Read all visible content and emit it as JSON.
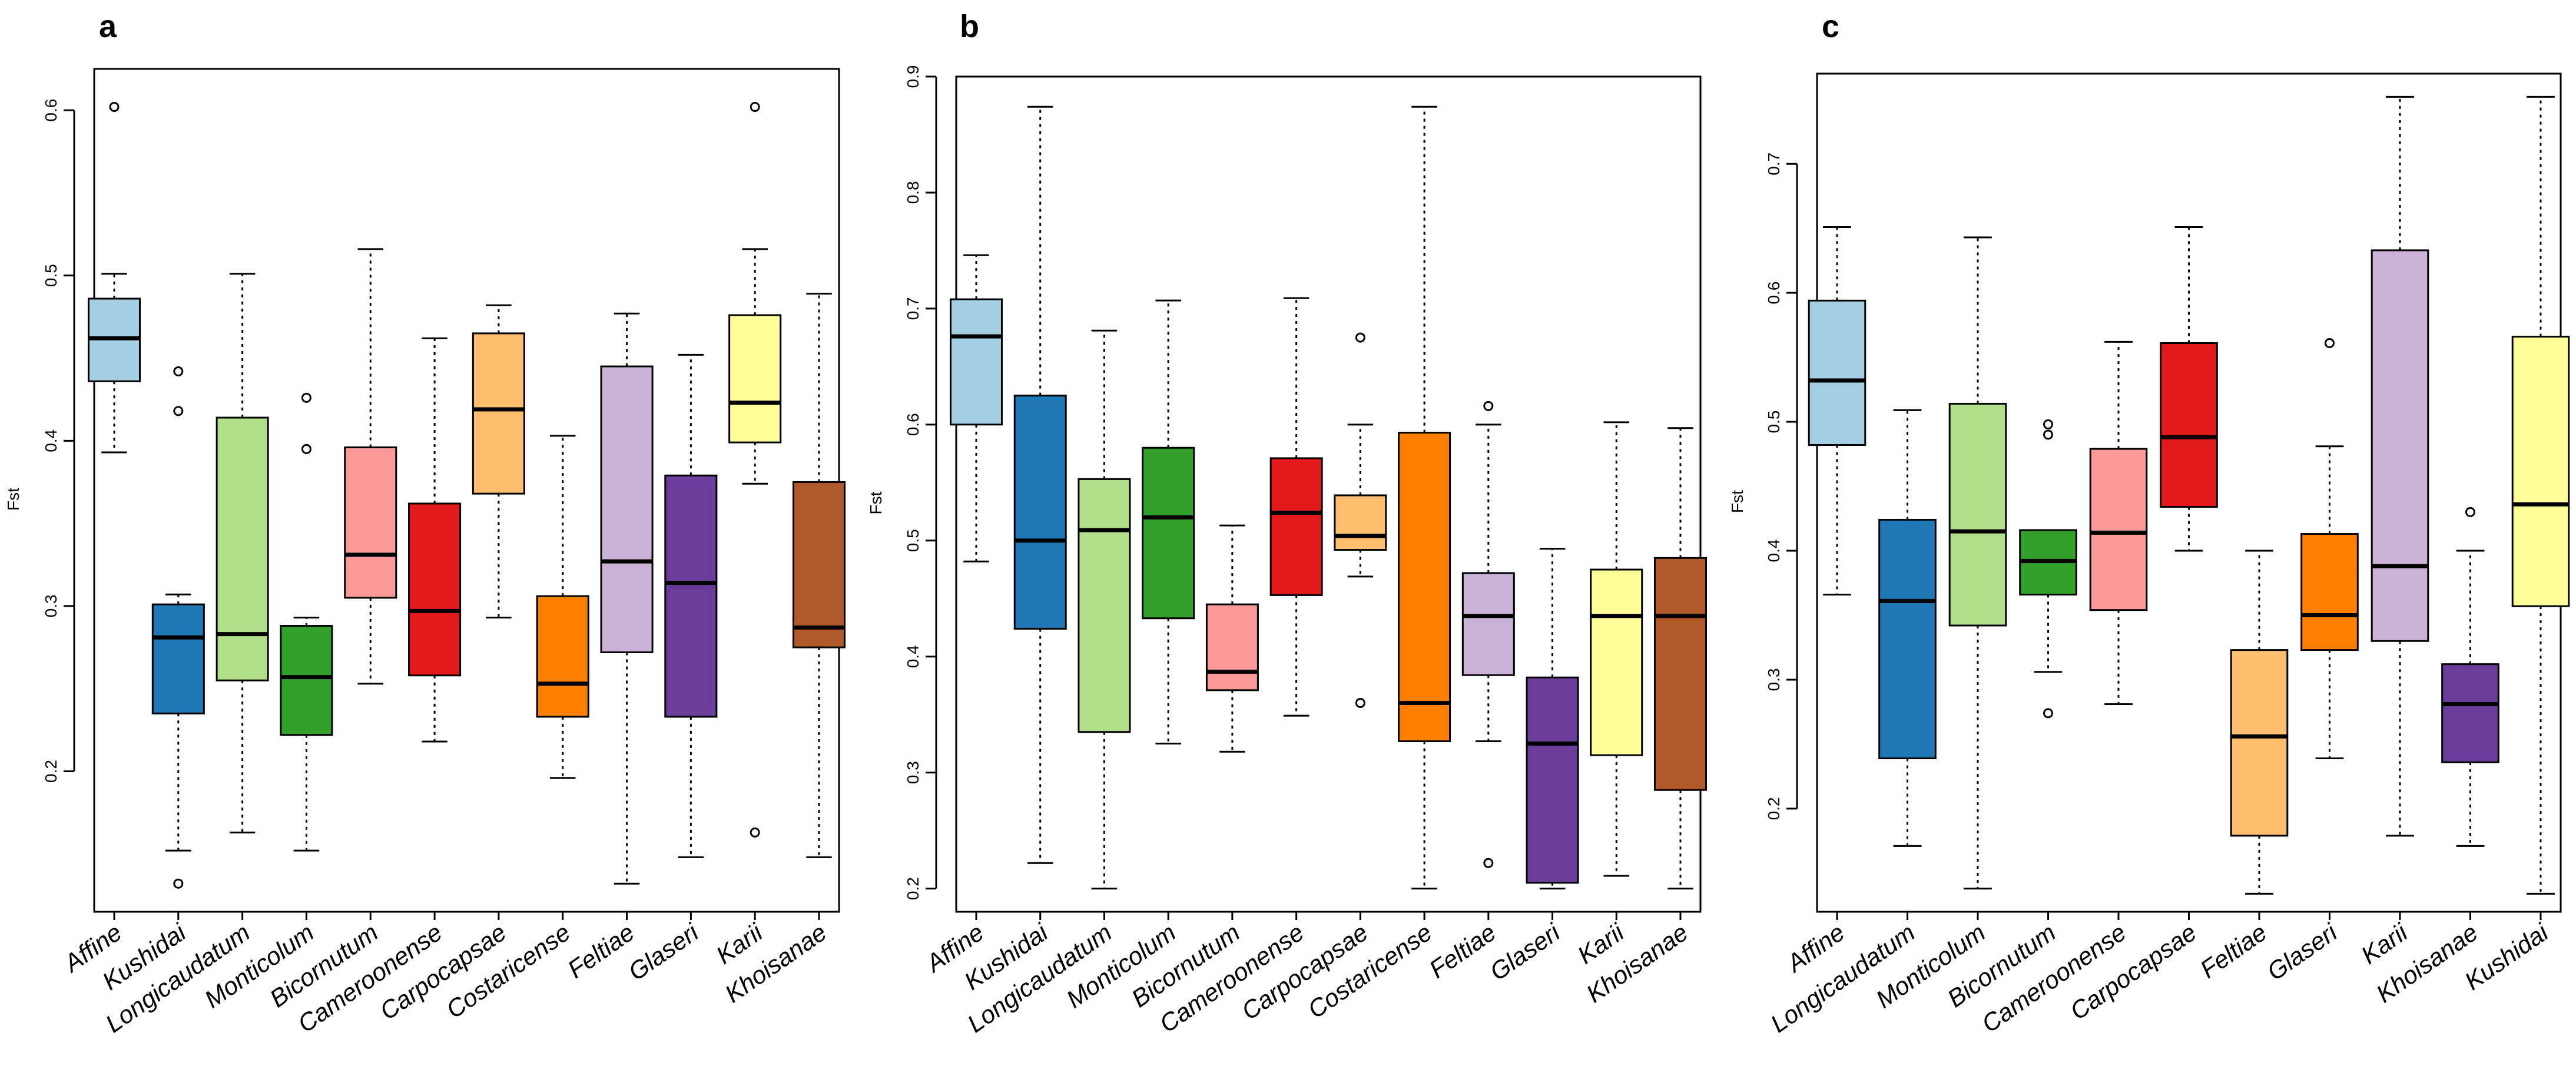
{
  "chart_data": [
    {
      "panel": "a",
      "type": "boxplot",
      "title": "",
      "ylabel": "Fst",
      "ylim": [
        0.115,
        0.625
      ],
      "yticks": [
        0.2,
        0.3,
        0.4,
        0.5,
        0.6
      ],
      "boxes": [
        {
          "name": "Affine",
          "color": "#a6cee3",
          "q1": 0.436,
          "median": 0.462,
          "q3": 0.486,
          "whisker_low": 0.393,
          "whisker_high": 0.501,
          "outliers": [
            0.602
          ]
        },
        {
          "name": "Kushidai",
          "color": "#1f78b4",
          "q1": 0.235,
          "median": 0.281,
          "q3": 0.301,
          "whisker_low": 0.152,
          "whisker_high": 0.307,
          "outliers": [
            0.442,
            0.418,
            0.132
          ]
        },
        {
          "name": "Longicaudatum",
          "color": "#b2df8a",
          "q1": 0.255,
          "median": 0.283,
          "q3": 0.414,
          "whisker_low": 0.163,
          "whisker_high": 0.501,
          "outliers": []
        },
        {
          "name": "Monticolum",
          "color": "#33a02c",
          "q1": 0.222,
          "median": 0.257,
          "q3": 0.288,
          "whisker_low": 0.152,
          "whisker_high": 0.293,
          "outliers": [
            0.426,
            0.395
          ]
        },
        {
          "name": "Bicornutum",
          "color": "#fb9a99",
          "q1": 0.305,
          "median": 0.331,
          "q3": 0.396,
          "whisker_low": 0.253,
          "whisker_high": 0.516,
          "outliers": []
        },
        {
          "name": "Cameroonense",
          "color": "#e31a1c",
          "q1": 0.258,
          "median": 0.297,
          "q3": 0.362,
          "whisker_low": 0.218,
          "whisker_high": 0.462,
          "outliers": []
        },
        {
          "name": "Carpocapsae",
          "color": "#fdbf6f",
          "q1": 0.368,
          "median": 0.419,
          "q3": 0.465,
          "whisker_low": 0.293,
          "whisker_high": 0.482,
          "outliers": []
        },
        {
          "name": "Costaricense",
          "color": "#ff7f00",
          "q1": 0.233,
          "median": 0.253,
          "q3": 0.306,
          "whisker_low": 0.196,
          "whisker_high": 0.403,
          "outliers": []
        },
        {
          "name": "Feltiae",
          "color": "#cab2d6",
          "q1": 0.272,
          "median": 0.327,
          "q3": 0.445,
          "whisker_low": 0.132,
          "whisker_high": 0.477,
          "outliers": []
        },
        {
          "name": "Glaseri",
          "color": "#6a3d9a",
          "q1": 0.233,
          "median": 0.314,
          "q3": 0.379,
          "whisker_low": 0.148,
          "whisker_high": 0.452,
          "outliers": []
        },
        {
          "name": "Karii",
          "color": "#ffff99",
          "q1": 0.399,
          "median": 0.423,
          "q3": 0.476,
          "whisker_low": 0.374,
          "whisker_high": 0.516,
          "outliers": [
            0.602,
            0.163
          ]
        },
        {
          "name": "Khoisanae",
          "color": "#b15928",
          "q1": 0.275,
          "median": 0.287,
          "q3": 0.375,
          "whisker_low": 0.148,
          "whisker_high": 0.489,
          "outliers": []
        }
      ]
    },
    {
      "panel": "b",
      "type": "boxplot",
      "title": "",
      "ylabel": "Fst",
      "ylim": [
        0.18,
        0.9
      ],
      "yticks": [
        0.2,
        0.3,
        0.4,
        0.5,
        0.6,
        0.7,
        0.8,
        0.9
      ],
      "boxes": [
        {
          "name": "Affine",
          "color": "#a6cee3",
          "q1": 0.6,
          "median": 0.676,
          "q3": 0.708,
          "whisker_low": 0.482,
          "whisker_high": 0.746,
          "outliers": []
        },
        {
          "name": "Kushidai",
          "color": "#1f78b4",
          "q1": 0.424,
          "median": 0.5,
          "q3": 0.625,
          "whisker_low": 0.222,
          "whisker_high": 0.874,
          "outliers": []
        },
        {
          "name": "Longicaudatum",
          "color": "#b2df8a",
          "q1": 0.335,
          "median": 0.509,
          "q3": 0.553,
          "whisker_low": 0.2,
          "whisker_high": 0.681,
          "outliers": []
        },
        {
          "name": "Monticolum",
          "color": "#33a02c",
          "q1": 0.433,
          "median": 0.52,
          "q3": 0.58,
          "whisker_low": 0.325,
          "whisker_high": 0.707,
          "outliers": []
        },
        {
          "name": "Bicornutum",
          "color": "#fb9a99",
          "q1": 0.371,
          "median": 0.387,
          "q3": 0.445,
          "whisker_low": 0.318,
          "whisker_high": 0.513,
          "outliers": []
        },
        {
          "name": "Cameroonense",
          "color": "#e31a1c",
          "q1": 0.453,
          "median": 0.524,
          "q3": 0.571,
          "whisker_low": 0.349,
          "whisker_high": 0.709,
          "outliers": []
        },
        {
          "name": "Carpocapsae",
          "color": "#fdbf6f",
          "q1": 0.492,
          "median": 0.504,
          "q3": 0.539,
          "whisker_low": 0.469,
          "whisker_high": 0.6,
          "outliers": [
            0.675,
            0.36
          ]
        },
        {
          "name": "Costaricense",
          "color": "#ff7f00",
          "q1": 0.327,
          "median": 0.36,
          "q3": 0.593,
          "whisker_low": 0.2,
          "whisker_high": 0.874,
          "outliers": []
        },
        {
          "name": "Feltiae",
          "color": "#cab2d6",
          "q1": 0.384,
          "median": 0.435,
          "q3": 0.472,
          "whisker_low": 0.327,
          "whisker_high": 0.6,
          "outliers": [
            0.616,
            0.222
          ]
        },
        {
          "name": "Glaseri",
          "color": "#6a3d9a",
          "q1": 0.205,
          "median": 0.325,
          "q3": 0.382,
          "whisker_low": 0.2,
          "whisker_high": 0.493,
          "outliers": []
        },
        {
          "name": "Karii",
          "color": "#ffff99",
          "q1": 0.315,
          "median": 0.435,
          "q3": 0.475,
          "whisker_low": 0.211,
          "whisker_high": 0.602,
          "outliers": []
        },
        {
          "name": "Khoisanae",
          "color": "#b15928",
          "q1": 0.285,
          "median": 0.435,
          "q3": 0.485,
          "whisker_low": 0.2,
          "whisker_high": 0.597,
          "outliers": []
        }
      ]
    },
    {
      "panel": "c",
      "type": "boxplot",
      "title": "",
      "ylabel": "Fst",
      "ylim": [
        0.12,
        0.77
      ],
      "yticks": [
        0.2,
        0.3,
        0.4,
        0.5,
        0.6,
        0.7
      ],
      "boxes": [
        {
          "name": "Affine",
          "color": "#a6cee3",
          "q1": 0.482,
          "median": 0.532,
          "q3": 0.594,
          "whisker_low": 0.366,
          "whisker_high": 0.651,
          "outliers": []
        },
        {
          "name": "Longicaudatum",
          "color": "#1f78b4",
          "q1": 0.239,
          "median": 0.361,
          "q3": 0.424,
          "whisker_low": 0.171,
          "whisker_high": 0.509,
          "outliers": []
        },
        {
          "name": "Monticolum",
          "color": "#b2df8a",
          "q1": 0.342,
          "median": 0.415,
          "q3": 0.514,
          "whisker_low": 0.138,
          "whisker_high": 0.643,
          "outliers": []
        },
        {
          "name": "Bicornutum",
          "color": "#33a02c",
          "q1": 0.366,
          "median": 0.392,
          "q3": 0.416,
          "whisker_low": 0.306,
          "whisker_high": 0.416,
          "outliers": [
            0.498,
            0.49,
            0.274
          ]
        },
        {
          "name": "Cameroonense",
          "color": "#fb9a99",
          "q1": 0.354,
          "median": 0.414,
          "q3": 0.479,
          "whisker_low": 0.281,
          "whisker_high": 0.562,
          "outliers": []
        },
        {
          "name": "Carpocapsae",
          "color": "#e31a1c",
          "q1": 0.434,
          "median": 0.488,
          "q3": 0.561,
          "whisker_low": 0.4,
          "whisker_high": 0.651,
          "outliers": []
        },
        {
          "name": "Feltiae",
          "color": "#fdbf6f",
          "q1": 0.179,
          "median": 0.256,
          "q3": 0.323,
          "whisker_low": 0.134,
          "whisker_high": 0.4,
          "outliers": []
        },
        {
          "name": "Glaseri",
          "color": "#ff7f00",
          "q1": 0.323,
          "median": 0.35,
          "q3": 0.413,
          "whisker_low": 0.239,
          "whisker_high": 0.481,
          "outliers": [
            0.561
          ]
        },
        {
          "name": "Karii",
          "color": "#cab2d6",
          "q1": 0.33,
          "median": 0.388,
          "q3": 0.633,
          "whisker_low": 0.179,
          "whisker_high": 0.752,
          "outliers": []
        },
        {
          "name": "Khoisanae",
          "color": "#6a3d9a",
          "q1": 0.236,
          "median": 0.281,
          "q3": 0.312,
          "whisker_low": 0.171,
          "whisker_high": 0.4,
          "outliers": [
            0.43
          ]
        },
        {
          "name": "Kushidai",
          "color": "#ffff99",
          "q1": 0.357,
          "median": 0.436,
          "q3": 0.566,
          "whisker_low": 0.134,
          "whisker_high": 0.752,
          "outliers": []
        }
      ]
    }
  ]
}
